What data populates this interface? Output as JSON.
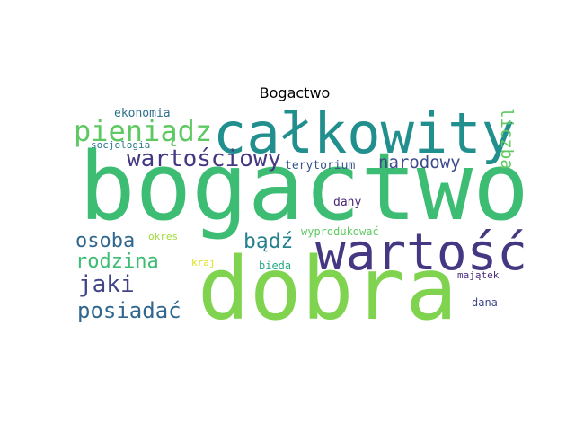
{
  "title": "Bogactwo",
  "words": {
    "bogactwo": "bogactwo",
    "dobra": "dobra",
    "calkowity": "całkowity",
    "wartosc": "wartość",
    "pieniadz": "pieniądz",
    "wartosciowy": "wartościowy",
    "narodowy": "narodowy",
    "liczba": "liczba",
    "ekonomia": "ekonomia",
    "socjologia": "socjologia",
    "terytorium": "terytorium",
    "dany": "dany",
    "osoba": "osoba",
    "okres": "okres",
    "badz": "bądź",
    "wyprodukowac": "wyprodukować",
    "rodzina": "rodzina",
    "kraj": "kraj",
    "bieda": "bieda",
    "majatek": "majątek",
    "jaki": "jaki",
    "posiadac": "posiadać",
    "dana": "dana"
  },
  "colors": {
    "green_bright": "#7fd34e",
    "green": "#3dbc74",
    "teal": "#218f8d",
    "navy": "#453781",
    "blue": "#31678e",
    "blue_mid": "#2d708e",
    "yellow": "#dde318",
    "light_green": "#a0da39"
  }
}
